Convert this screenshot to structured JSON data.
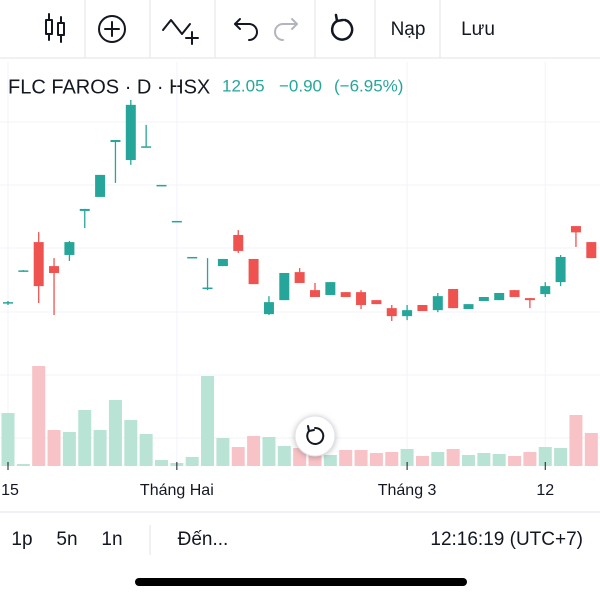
{
  "toolbar": {
    "buttons": [
      "Nạp",
      "Lưu"
    ]
  },
  "header": {
    "title": "FLC FAROS · D · HSX",
    "last": "12.05",
    "change": "−0.90",
    "change_pct": "(−6.95%)"
  },
  "chart_data": {
    "type": "candlestick",
    "categories": [
      "15",
      null,
      null,
      null,
      null,
      null,
      null,
      null,
      null,
      null,
      null,
      "Tháng Hai",
      null,
      null,
      null,
      null,
      null,
      null,
      null,
      null,
      null,
      null,
      null,
      null,
      null,
      null,
      "Tháng 3",
      null,
      null,
      null,
      null,
      null,
      null,
      null,
      null,
      "12",
      null,
      null,
      null
    ],
    "open": [
      10.48,
      11.6,
      12.61,
      11.77,
      12.16,
      13.7,
      14.19,
      16.11,
      15.48,
      15.94,
      14.61,
      13.35,
      12.09,
      11.0,
      11.77,
      12.86,
      12.02,
      10.09,
      10.58,
      11.56,
      10.93,
      10.76,
      10.86,
      10.86,
      10.58,
      10.3,
      10.02,
      10.41,
      10.23,
      10.97,
      10.27,
      10.55,
      10.58,
      10.93,
      10.65,
      10.79,
      11.21,
      13.17,
      12.61
    ],
    "high": [
      10.55,
      11.63,
      12.96,
      12.05,
      12.65,
      13.77,
      14.96,
      16.18,
      17.58,
      16.71,
      14.61,
      13.35,
      12.09,
      12.05,
      12.02,
      13.03,
      12.02,
      10.72,
      11.53,
      11.7,
      11.18,
      11.21,
      10.86,
      10.93,
      10.58,
      10.41,
      10.41,
      10.41,
      10.83,
      10.97,
      10.44,
      10.69,
      10.83,
      10.93,
      10.65,
      11.21,
      12.16,
      13.17,
      12.61
    ],
    "low": [
      10.41,
      11.58,
      10.48,
      10.06,
      11.95,
      13.1,
      14.19,
      14.68,
      15.31,
      15.94,
      14.61,
      13.35,
      12.09,
      10.93,
      11.77,
      12.23,
      11.14,
      10.06,
      10.58,
      11.18,
      10.69,
      10.76,
      10.69,
      10.27,
      10.44,
      9.85,
      9.88,
      10.2,
      10.16,
      10.3,
      10.27,
      10.55,
      10.58,
      10.69,
      10.3,
      10.69,
      11.07,
      12.44,
      12.05
    ],
    "close": [
      10.51,
      11.62,
      11.07,
      11.53,
      12.61,
      13.77,
      14.96,
      16.18,
      17.41,
      15.96,
      14.61,
      13.35,
      12.09,
      11.02,
      12.02,
      12.3,
      11.14,
      10.51,
      11.53,
      11.18,
      10.69,
      11.21,
      10.69,
      10.41,
      10.44,
      10.02,
      10.23,
      10.2,
      10.72,
      10.3,
      10.44,
      10.69,
      10.83,
      10.69,
      10.58,
      11.07,
      12.09,
      12.95,
      12.05
    ],
    "volume": [
      53,
      2,
      100,
      36,
      34,
      56,
      36,
      66,
      46,
      32,
      6,
      3,
      9,
      90,
      28,
      19,
      30,
      29,
      20,
      18,
      11,
      11,
      16,
      16,
      13,
      14,
      17,
      10,
      14,
      17,
      11,
      13,
      12,
      10,
      14,
      19,
      18,
      51,
      33
    ],
    "up_color": "#26a69a",
    "down_color": "#ef5350",
    "volume_up_color": "#b9e3d5",
    "volume_down_color": "#f7c3c6"
  },
  "footer": {
    "intervals": [
      "1p",
      "5n",
      "1n"
    ],
    "goto": "Đến...",
    "clock": "12:16:19 (UTC+7)"
  }
}
